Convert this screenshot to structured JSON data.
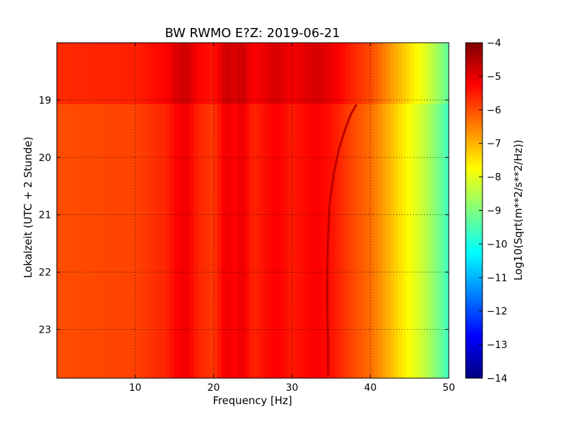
{
  "chart_data": {
    "type": "heatmap",
    "title": "BW RWMO E?Z: 2019-06-21",
    "xlabel": "Frequency [Hz]",
    "ylabel": "Lokalzeit (UTC + 2 Stunde)",
    "xlim": [
      0,
      50
    ],
    "ylim": [
      18.0,
      23.85
    ],
    "y_inverted": true,
    "x_ticks": [
      10,
      20,
      30,
      40,
      50
    ],
    "y_ticks": [
      19,
      20,
      21,
      22,
      23
    ],
    "grid": true,
    "colormap": "jet",
    "colorbar": {
      "label": "Log10(Sqrt(m**2/s**2/Hz))",
      "range": [
        -14,
        -4
      ],
      "ticks": [
        -4,
        -5,
        -6,
        -7,
        -8,
        -9,
        -10,
        -11,
        -12,
        -13,
        -14
      ]
    },
    "level_profile_by_frequency": {
      "freq_hz": [
        0,
        10,
        14,
        15,
        16.5,
        18,
        20,
        21.5,
        23,
        23.5,
        25,
        28,
        30,
        33,
        35,
        36,
        37,
        38,
        40,
        41,
        42,
        43,
        44,
        45,
        46,
        47,
        48,
        49,
        50
      ],
      "log10_amplitude": [
        -6.0,
        -5.9,
        -5.6,
        -5.3,
        -5.1,
        -5.6,
        -5.8,
        -5.1,
        -5.3,
        -5.0,
        -5.6,
        -5.2,
        -5.5,
        -5.2,
        -5.4,
        -5.6,
        -5.8,
        -6.0,
        -6.3,
        -6.6,
        -6.9,
        -7.2,
        -7.5,
        -7.8,
        -8.1,
        -8.4,
        -8.8,
        -9.2,
        -9.7
      ]
    },
    "features": [
      {
        "kind": "drifting-line",
        "points": [
          [
            38.2,
            19.08
          ],
          [
            37.5,
            19.25
          ],
          [
            36.8,
            19.5
          ],
          [
            36.0,
            19.85
          ],
          [
            35.3,
            20.3
          ],
          [
            34.8,
            20.8
          ],
          [
            34.6,
            21.4
          ],
          [
            34.5,
            22.0
          ],
          [
            34.5,
            22.6
          ],
          [
            34.6,
            23.2
          ],
          [
            34.6,
            23.8
          ]
        ],
        "level": -4.6
      },
      {
        "kind": "elevated-band",
        "time_range": [
          18.0,
          19.07
        ],
        "freq_range": [
          0,
          50
        ],
        "level_shift": 0.35
      }
    ]
  }
}
